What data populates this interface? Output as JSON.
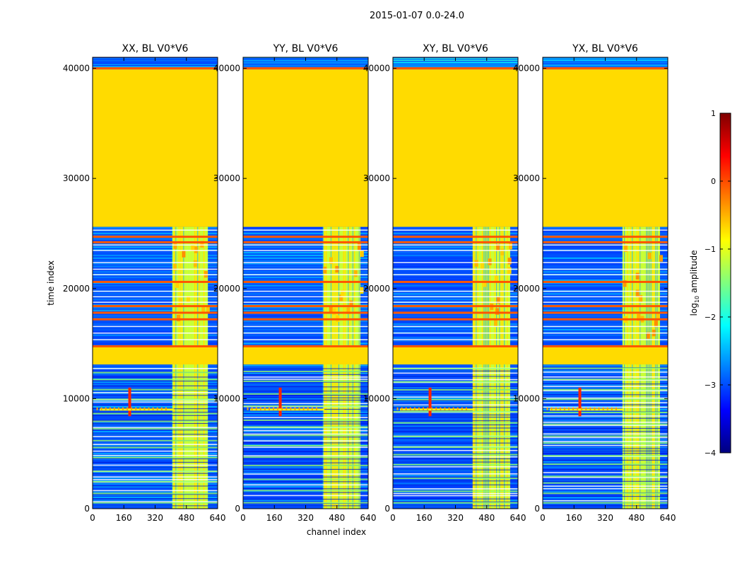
{
  "figure": {
    "suptitle": "2015-01-07 0.0-24.0"
  },
  "chart_data": {
    "type": "heatmap",
    "ylabel": "time index",
    "xlabel": "channel index",
    "xlim": [
      0,
      640
    ],
    "ylim": [
      0,
      41000
    ],
    "xticks": [
      0,
      160,
      320,
      480,
      640
    ],
    "yticks": [
      0,
      10000,
      20000,
      30000,
      40000
    ],
    "panels": [
      {
        "title": "XX, BL V0*V6",
        "pol": "XX",
        "bright_channel_band": [
          408,
          590
        ]
      },
      {
        "title": "YY, BL V0*V6",
        "pol": "YY",
        "bright_channel_band": [
          408,
          600
        ]
      },
      {
        "title": "XY, BL V0*V6",
        "pol": "XY",
        "bright_channel_band": [
          408,
          600
        ]
      },
      {
        "title": "YX, BL V0*V6",
        "pol": "YX",
        "bright_channel_band": [
          408,
          600
        ]
      }
    ],
    "flagged_time_ranges": [
      [
        25600,
        39900
      ],
      [
        13100,
        14700
      ]
    ],
    "flagged_value_log10": -0.7,
    "colorbar": {
      "label": "log10 amplitude",
      "min": -4,
      "max": 1,
      "ticks": [
        1,
        0,
        -1,
        -2,
        -3,
        -4
      ],
      "tick_labels": [
        "1",
        "0",
        "−1",
        "−2",
        "−3",
        "−4"
      ],
      "colormap": [
        "#00007f",
        "#0000ff",
        "#007fff",
        "#00ffff",
        "#7fff7f",
        "#ffff00",
        "#ff7f00",
        "#ff0000",
        "#7f0000"
      ]
    }
  }
}
